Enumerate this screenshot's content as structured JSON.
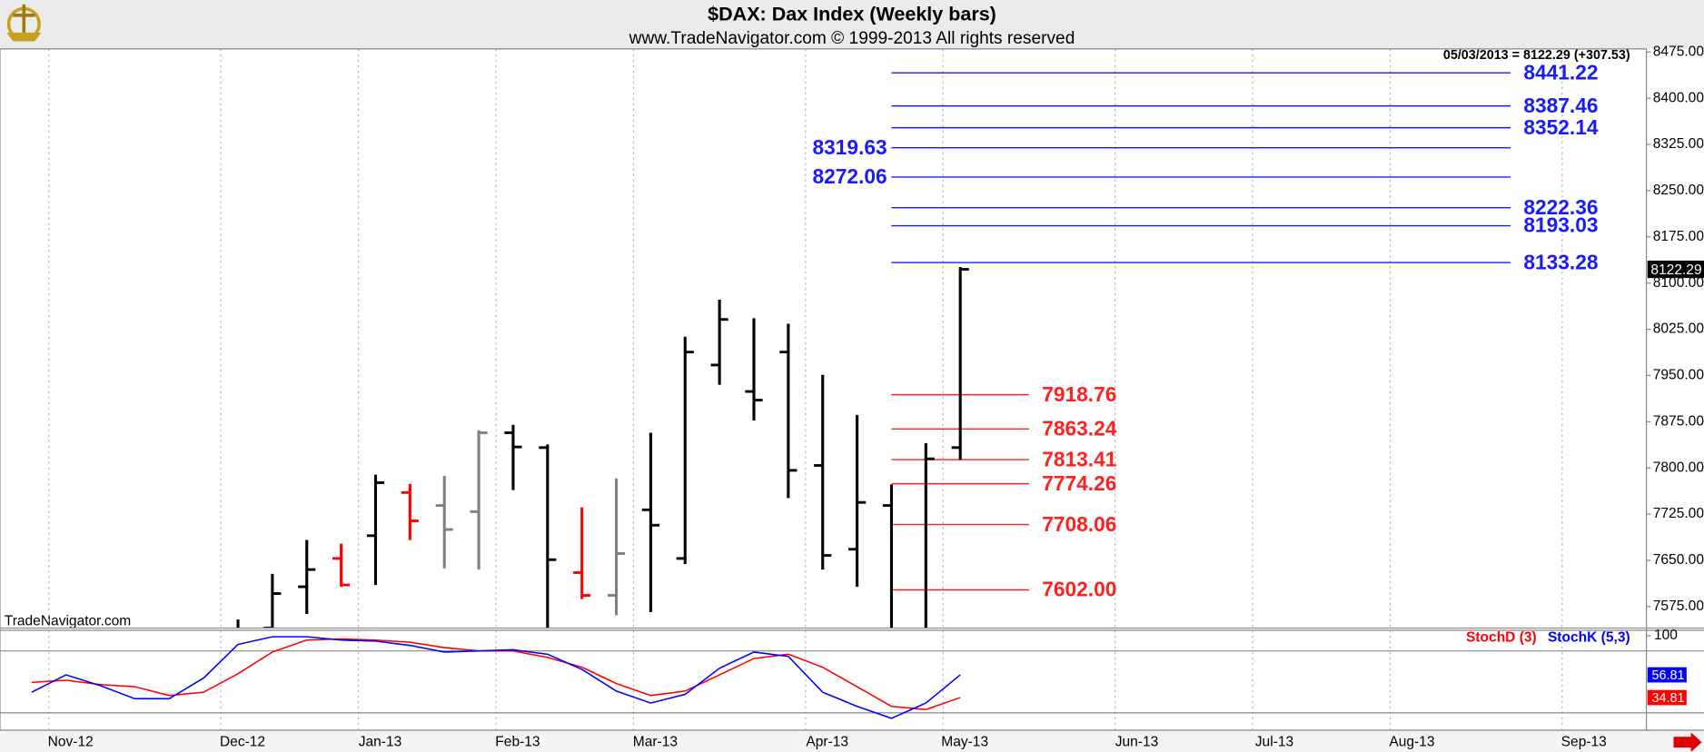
{
  "chart_data": [
    {
      "type": "ohlc",
      "title": "$DAX:  Dax Index  (Weekly bars)",
      "subtitle": "www.TradeNavigator.com © 1999-2013 All rights reserved",
      "annotation": "05/03/2013 = 8122.29 (+307.53)",
      "watermark": "TradeNavigator.com",
      "x": [
        0,
        1,
        2,
        3,
        4,
        5,
        6,
        7,
        8,
        9,
        10,
        11,
        12,
        13,
        14,
        15,
        16,
        17,
        18,
        19,
        20,
        21
      ],
      "open": [
        7420,
        7540,
        7607,
        7653,
        7690,
        7760,
        7739,
        7729,
        7857,
        7833,
        7630,
        7593,
        7732,
        7653,
        7967,
        7924,
        7988,
        7804,
        7668,
        7739,
        7470,
        7833
      ],
      "high": [
        7554,
        7628,
        7683,
        7677,
        7789,
        7774,
        7787,
        7861,
        7870,
        7838,
        7736,
        7783,
        7857,
        8013,
        8073,
        8043,
        8034,
        7951,
        7886,
        7773,
        7840,
        8126
      ],
      "low": [
        7420,
        7500,
        7563,
        7607,
        7610,
        7683,
        7637,
        7635,
        7764,
        7530,
        7587,
        7561,
        7566,
        7644,
        7935,
        7877,
        7751,
        7635,
        7607,
        7420,
        7440,
        7813
      ],
      "close": [
        7517,
        7596,
        7635,
        7610,
        7776,
        7714,
        7700,
        7857,
        7834,
        7651,
        7593,
        7661,
        7707,
        7988,
        8041,
        7910,
        7796,
        7658,
        7744,
        7459,
        7814.76,
        8122.29
      ],
      "colors": [
        "#000000",
        "#000000",
        "#000000",
        "#ff0000",
        "#000000",
        "#ff0000",
        "#808080",
        "#808080",
        "#000000",
        "#000000",
        "#ff0000",
        "#808080",
        "#000000",
        "#000000",
        "#000000",
        "#000000",
        "#000000",
        "#000000",
        "#000000",
        "#000000",
        "#000000",
        "#000000"
      ],
      "xlim": [
        -6.92,
        40.95
      ],
      "ylim": [
        7540,
        8480
      ],
      "yticks": [
        {
          "value": 8475,
          "label": "8475.00"
        },
        {
          "value": 8400,
          "label": "8400.00"
        },
        {
          "value": 8325,
          "label": "8325.00"
        },
        {
          "value": 8250,
          "label": "8250.00"
        },
        {
          "value": 8175,
          "label": "8175.00"
        },
        {
          "value": 8100,
          "label": "8100.00"
        },
        {
          "value": 8025,
          "label": "8025.00"
        },
        {
          "value": 7950,
          "label": "7950.00"
        },
        {
          "value": 7875,
          "label": "7875.00"
        },
        {
          "value": 7800,
          "label": "7800.00"
        },
        {
          "value": 7725,
          "label": "7725.00"
        },
        {
          "value": 7650,
          "label": "7650.00"
        },
        {
          "value": 7575,
          "label": "7575.00"
        }
      ],
      "levels": [
        {
          "color": "#1a1aff",
          "from": 19,
          "to": 37,
          "values": [
            8441.22,
            8387.46,
            8352.14,
            8319.63,
            8272.06,
            8222.36,
            8193.03,
            8133.28
          ],
          "label_side": [
            "right",
            "right",
            "right",
            "left",
            "left",
            "right",
            "right",
            "right"
          ]
        },
        {
          "color": "#ff2020",
          "from": 19,
          "to": 23,
          "values": [
            7918.76,
            7863.24,
            7813.41,
            7774.26,
            7708.06,
            7602
          ],
          "value_labels": [
            "7918.76",
            "7863.24",
            "7813.41",
            "7774.26",
            "7708.06",
            "7602.00"
          ],
          "label_side": [
            "right",
            "right",
            "right",
            "right",
            "right",
            "right"
          ]
        }
      ]
    },
    {
      "type": "line",
      "x": [
        -6,
        -5,
        -4,
        -3,
        -2,
        -1,
        0,
        1,
        2,
        3,
        4,
        5,
        6,
        7,
        8,
        9,
        10,
        11,
        12,
        13,
        14,
        15,
        16,
        17,
        18,
        19,
        20,
        21
      ],
      "series": [
        {
          "name": "StochD (3)",
          "color": "#ff0000",
          "values": [
            49.5,
            51.6,
            47.4,
            45.3,
            36.8,
            40.0,
            57.9,
            78.9,
            90.5,
            91.6,
            90.5,
            88.4,
            83.2,
            80.0,
            80.0,
            73.7,
            64.2,
            48.4,
            36.8,
            41.1,
            56.8,
            72.6,
            76.8,
            64.2,
            45.3,
            26.3,
            23.2,
            34.81
          ]
        },
        {
          "name": "StochK (5,3)",
          "color": "#0000ff",
          "values": [
            40.0,
            56.8,
            46.3,
            33.7,
            33.7,
            53.7,
            86.3,
            93.7,
            93.7,
            90.5,
            89.5,
            85.3,
            78.9,
            80.0,
            81.1,
            76.8,
            62.1,
            41.1,
            29.5,
            37.9,
            63.2,
            78.9,
            74.7,
            40.0,
            26.3,
            14.7,
            29.5,
            56.81
          ]
        }
      ],
      "xlim": [
        -6.92,
        40.95
      ],
      "ylim": [
        0,
        100
      ],
      "yticks": [
        100
      ],
      "ref_lines": [
        20,
        80
      ],
      "xticks": [
        {
          "value": -5.5,
          "label": "Nov-12"
        },
        {
          "value": -0.5,
          "label": "Dec-12"
        },
        {
          "value": 3.5,
          "label": "Jan-13"
        },
        {
          "value": 7.5,
          "label": "Feb-13"
        },
        {
          "value": 11.5,
          "label": "Mar-13"
        },
        {
          "value": 16.5,
          "label": "Apr-13"
        },
        {
          "value": 20.5,
          "label": "May-13"
        },
        {
          "value": 25.5,
          "label": "Jun-13"
        },
        {
          "value": 29.5,
          "label": "Jul-13"
        },
        {
          "value": 33.5,
          "label": "Aug-13"
        },
        {
          "value": 38.5,
          "label": "Sep-13"
        }
      ]
    }
  ]
}
